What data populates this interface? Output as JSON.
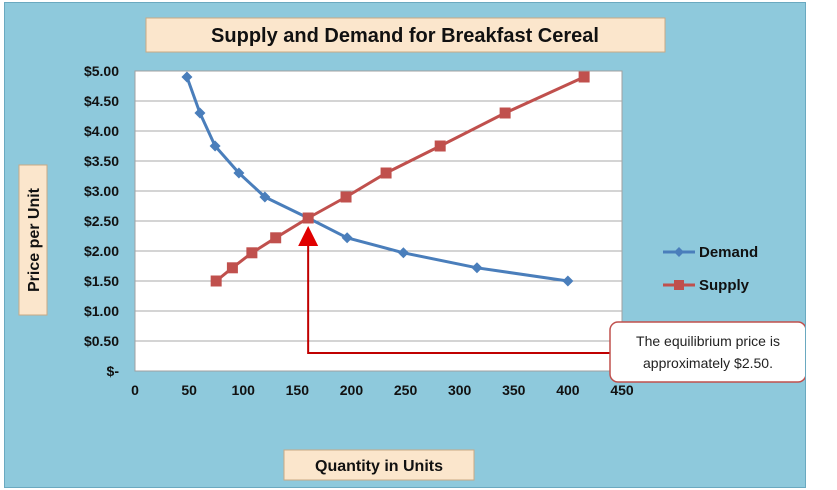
{
  "chart_data": {
    "type": "line",
    "title": "Supply and Demand for Breakfast Cereal",
    "xlabel": "Quantity in Units",
    "ylabel": "Price per Unit",
    "xlim": [
      0,
      450
    ],
    "ylim": [
      0,
      5
    ],
    "x_ticks": [
      "0",
      "50",
      "100",
      "150",
      "200",
      "250",
      "300",
      "350",
      "400",
      "450"
    ],
    "y_ticks": [
      "$-",
      "$0.50",
      "$1.00",
      "$1.50",
      "$2.00",
      "$2.50",
      "$3.00",
      "$3.50",
      "$4.00",
      "$4.50",
      "$5.00"
    ],
    "grid": "horizontal",
    "legend_position": "right",
    "series": [
      {
        "name": "Demand",
        "color": "#4a7ebb",
        "marker": "diamond",
        "points": [
          [
            48,
            4.9
          ],
          [
            60,
            4.3
          ],
          [
            74,
            3.75
          ],
          [
            96,
            3.3
          ],
          [
            120,
            2.9
          ],
          [
            160,
            2.55
          ],
          [
            196,
            2.22
          ],
          [
            248,
            1.97
          ],
          [
            316,
            1.72
          ],
          [
            400,
            1.5
          ]
        ]
      },
      {
        "name": "Supply",
        "color": "#c0504d",
        "marker": "square",
        "points": [
          [
            75,
            1.5
          ],
          [
            90,
            1.72
          ],
          [
            108,
            1.97
          ],
          [
            130,
            2.22
          ],
          [
            160,
            2.55
          ],
          [
            195,
            2.9
          ],
          [
            232,
            3.3
          ],
          [
            282,
            3.75
          ],
          [
            342,
            4.3
          ],
          [
            415,
            4.9
          ]
        ]
      }
    ],
    "annotation": {
      "text_line1": "The equilibrium price is",
      "text_line2": "approximately $2.50.",
      "target": [
        160,
        2.25
      ],
      "color": "#c00000"
    }
  }
}
